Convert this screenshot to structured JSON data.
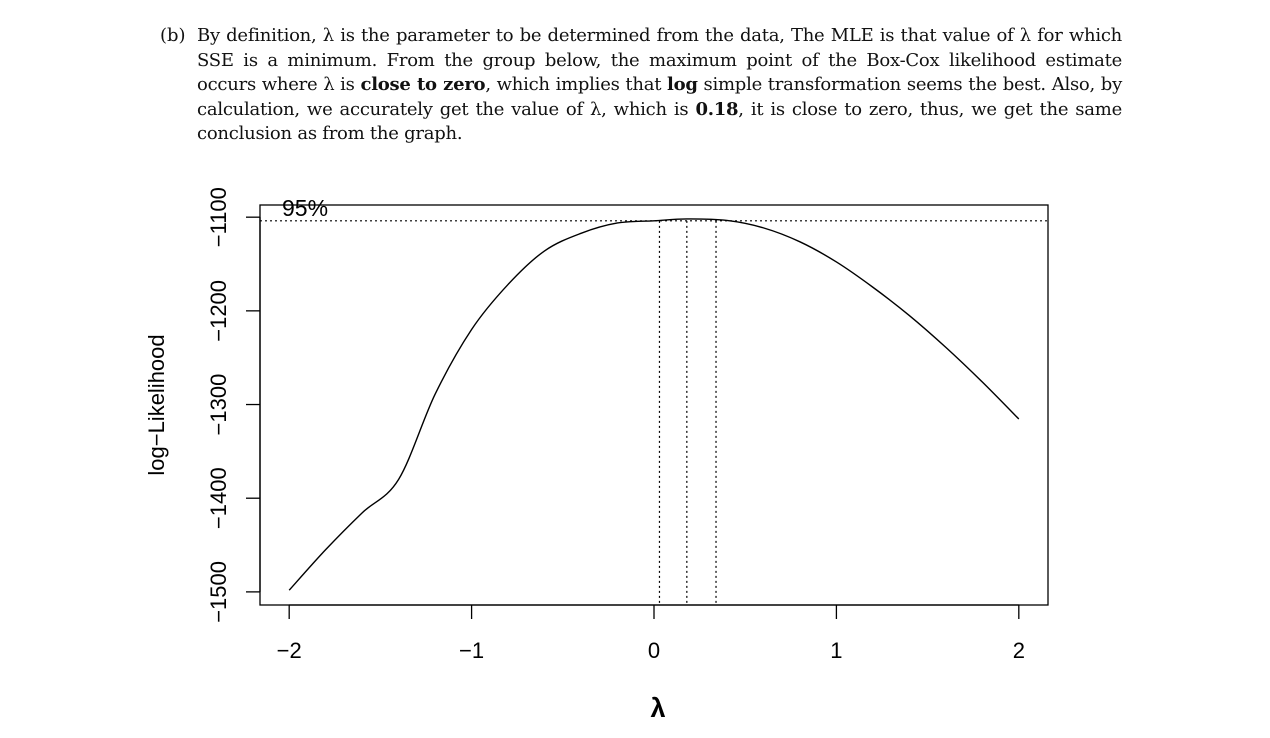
{
  "paragraph": {
    "label": "(b)",
    "segments": [
      {
        "text": "By definition, λ is the parameter to be determined from the data, The MLE is that value of λ for which SSE is a minimum. From the group below, the maximum point of the Box-Cox likelihood estimate occurs where λ is ",
        "bold": false
      },
      {
        "text": "close to zero",
        "bold": true
      },
      {
        "text": ", which implies that ",
        "bold": false
      },
      {
        "text": "log",
        "bold": true
      },
      {
        "text": " simple transformation seems the best. Also, by calculation, we accurately get the value of λ, which is ",
        "bold": false
      },
      {
        "text": "0.18",
        "bold": true
      },
      {
        "text": ", it is close to zero, thus, we get the same conclusion as from the graph.",
        "bold": false
      }
    ]
  },
  "chart_data": {
    "type": "line",
    "title": "",
    "xlabel": "λ",
    "ylabel": "log−Likelihood",
    "xlim": [
      -2.16,
      2.16
    ],
    "ylim": [
      -1514,
      -1087
    ],
    "x_ticks": [
      {
        "value": -2,
        "label": "−2"
      },
      {
        "value": -1,
        "label": "−1"
      },
      {
        "value": 0,
        "label": "0"
      },
      {
        "value": 1,
        "label": "1"
      },
      {
        "value": 2,
        "label": "2"
      }
    ],
    "y_ticks": [
      {
        "value": -1500,
        "label": "−1500"
      },
      {
        "value": -1400,
        "label": "−1400"
      },
      {
        "value": -1300,
        "label": "−1300"
      },
      {
        "value": -1200,
        "label": "−1200"
      },
      {
        "value": -1100,
        "label": "−1100"
      }
    ],
    "series": [
      {
        "x": [
          -2.0,
          -1.8,
          -1.6,
          -1.4,
          -1.2,
          -1.0,
          -0.8,
          -0.6,
          -0.4,
          -0.2,
          0.0,
          0.18,
          0.4,
          0.6,
          0.8,
          1.0,
          1.2,
          1.4,
          1.6,
          1.8,
          2.0
        ],
        "y": [
          -1498.2,
          -1454.9,
          -1415.6,
          -1379.9,
          -1289.0,
          -1219.9,
          -1171.8,
          -1136.0,
          -1117.2,
          -1106.2,
          -1103.9,
          -1101.9,
          -1103.5,
          -1111.4,
          -1126.3,
          -1147.8,
          -1174.8,
          -1205.0,
          -1239.0,
          -1276.0,
          -1315.5
        ]
      }
    ],
    "ci_annotation": {
      "label": "95%",
      "threshold_y": -1103.9,
      "lower_x": 0.03,
      "mle_x": 0.18,
      "upper_x": 0.34
    },
    "grid": false,
    "legend": "none"
  }
}
